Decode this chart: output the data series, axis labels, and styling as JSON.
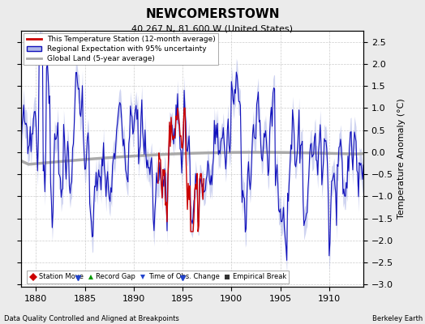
{
  "title": "NEWCOMERSTOWN",
  "subtitle": "40.267 N, 81.600 W (United States)",
  "ylabel": "Temperature Anomaly (°C)",
  "xlabel_note": "Data Quality Controlled and Aligned at Breakpoints",
  "credit": "Berkeley Earth",
  "xlim": [
    1878.5,
    1913.5
  ],
  "ylim": [
    -3.05,
    2.75
  ],
  "yticks": [
    -3,
    -2.5,
    -2,
    -1.5,
    -1,
    -0.5,
    0,
    0.5,
    1,
    1.5,
    2,
    2.5
  ],
  "xticks": [
    1880,
    1885,
    1890,
    1895,
    1900,
    1905,
    1910
  ],
  "bg_color": "#ebebeb",
  "plot_bg_color": "#ffffff",
  "grid_color": "#cccccc",
  "blue_line_color": "#1111bb",
  "blue_fill_color": "#b0b8e8",
  "red_line_color": "#cc0000",
  "gray_line_color": "#aaaaaa",
  "obs_change_marker_color": "#2244cc",
  "station_move_color": "#cc0000",
  "record_gap_color": "#009900",
  "empirical_break_color": "#333333",
  "time_of_obs_changes": [
    1884.3,
    1895.0
  ],
  "station_moves": [],
  "record_gaps": [],
  "empirical_breaks": []
}
